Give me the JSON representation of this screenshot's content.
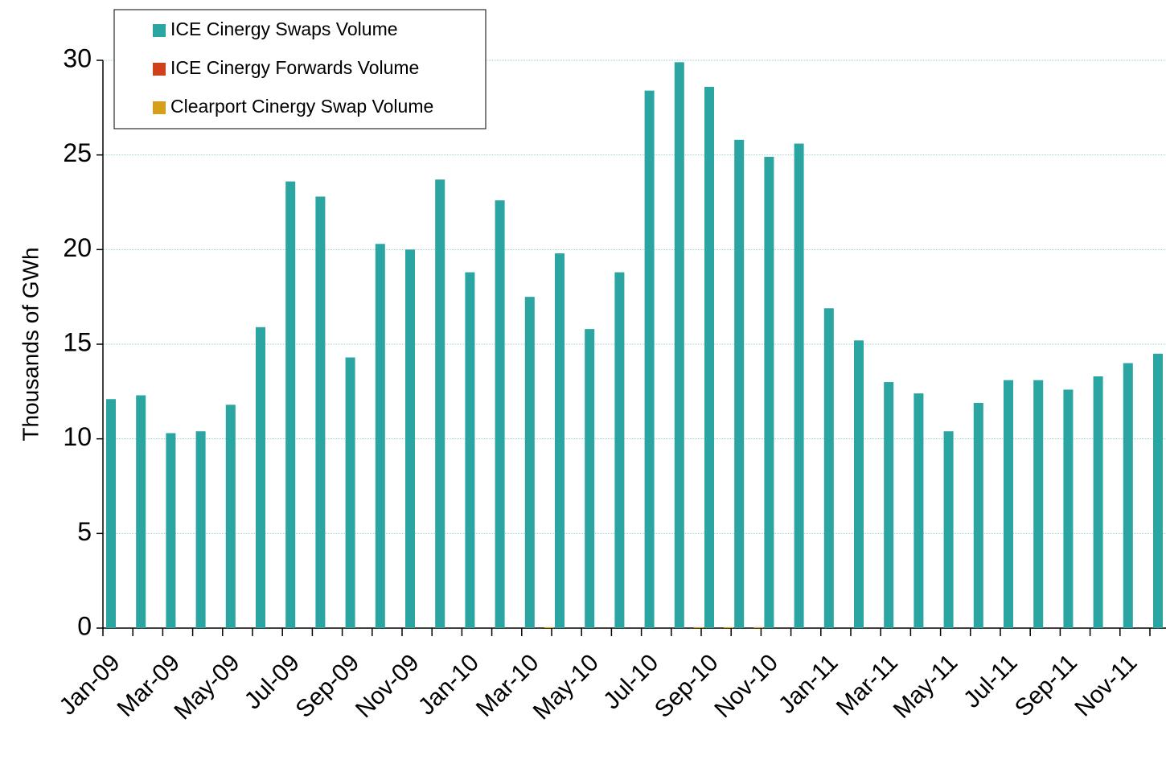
{
  "chart_data": {
    "type": "bar",
    "y_label": "Thousands of GWh",
    "categories": [
      "Jan-09",
      null,
      "Mar-09",
      null,
      "May-09",
      null,
      "Jul-09",
      null,
      "Sep-09",
      null,
      "Nov-09",
      null,
      "Jan-10",
      null,
      "Mar-10",
      null,
      "May-10",
      null,
      "Jul-10",
      null,
      "Sep-10",
      null,
      "Nov-10",
      null,
      "Jan-11",
      null,
      "Mar-11",
      null,
      "May-11",
      null,
      "Jul-11",
      null,
      "Sep-11",
      null,
      "Nov-11",
      null
    ],
    "series": [
      {
        "name": "ICE Cinergy Swaps Volume",
        "color": "#2aa5a1",
        "values": [
          12.1,
          12.3,
          10.3,
          10.4,
          11.8,
          15.9,
          23.6,
          22.8,
          14.3,
          20.3,
          20.0,
          23.7,
          18.8,
          22.6,
          17.5,
          19.8,
          15.8,
          18.8,
          28.4,
          29.9,
          28.6,
          25.8,
          24.9,
          25.6,
          16.9,
          15.2,
          13.0,
          12.4,
          10.4,
          11.9,
          13.1,
          13.1,
          12.6,
          13.3,
          14.0,
          14.5
        ]
      },
      {
        "name": "ICE Cinergy Forwards Volume",
        "color": "#d0401a",
        "values": [
          0,
          0,
          0,
          0,
          0,
          0,
          0,
          0,
          0,
          0,
          0,
          0,
          0,
          0,
          0,
          0,
          0,
          0,
          0,
          0,
          0,
          0,
          0,
          0,
          0,
          0,
          0,
          0,
          0,
          0,
          0,
          0,
          0,
          0,
          0,
          0
        ]
      },
      {
        "name": "Clearport Cinergy Swap Volume",
        "color": "#d4a017",
        "values": [
          0,
          0,
          0,
          0,
          0,
          0,
          0,
          0,
          0,
          0,
          0,
          0,
          0,
          0,
          0.05,
          0,
          0,
          0,
          0,
          0.05,
          0.05,
          0.05,
          0,
          0,
          0,
          0,
          0,
          0,
          0,
          0,
          0,
          0,
          0,
          0,
          0,
          0
        ]
      }
    ],
    "ylim": [
      0,
      30
    ],
    "yticks": [
      0,
      5,
      10,
      15,
      20,
      25,
      30
    ],
    "grid": true,
    "legend": "top-left"
  }
}
